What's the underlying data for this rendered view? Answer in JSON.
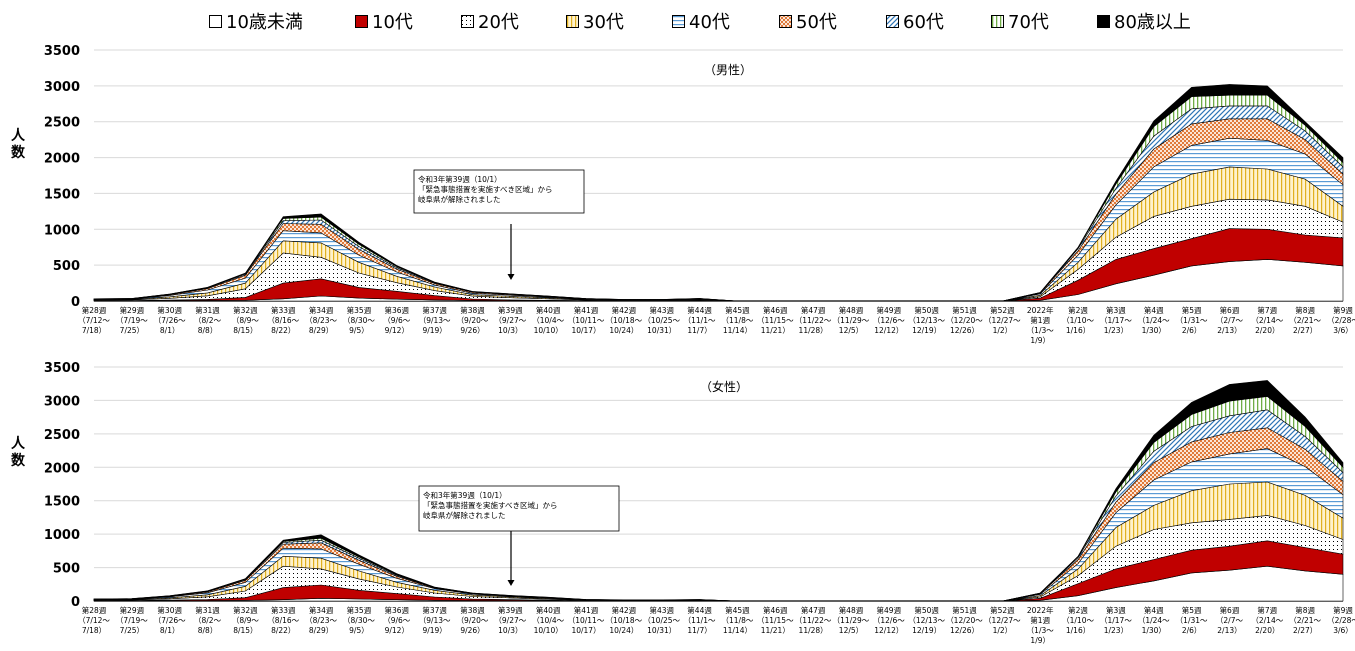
{
  "legend": [
    {
      "label": "10歳未満",
      "color": "#ffffff",
      "pattern": "none"
    },
    {
      "label": "10代",
      "color": "#c00000",
      "pattern": "solid"
    },
    {
      "label": "20代",
      "color": "#ffffff",
      "pattern": "dots"
    },
    {
      "label": "30代",
      "color": "#ffe699",
      "pattern": "vlines"
    },
    {
      "label": "40代",
      "color": "#9dc3e6",
      "pattern": "hlines"
    },
    {
      "label": "50代",
      "color": "#f4b183",
      "pattern": "checker"
    },
    {
      "label": "60代",
      "color": "#2e75b6",
      "pattern": "diag"
    },
    {
      "label": "70代",
      "color": "#a9d18e",
      "pattern": "vlines2"
    },
    {
      "label": "80歳以上",
      "color": "#000000",
      "pattern": "solid"
    }
  ],
  "ylabel": "人数",
  "categories": [
    [
      "第28週",
      "（7/12～",
      "7/18）"
    ],
    [
      "第29週",
      "（7/19～",
      "7/25）"
    ],
    [
      "第30週",
      "（7/26～",
      "8/1）"
    ],
    [
      "第31週",
      "（8/2～",
      "8/8）"
    ],
    [
      "第32週",
      "（8/9～",
      "8/15）"
    ],
    [
      "第33週",
      "（8/16～",
      "8/22）"
    ],
    [
      "第34週",
      "（8/23～",
      "8/29）"
    ],
    [
      "第35週",
      "（8/30～",
      "9/5）"
    ],
    [
      "第36週",
      "（9/6～",
      "9/12）"
    ],
    [
      "第37週",
      "（9/13～",
      "9/19）"
    ],
    [
      "第38週",
      "（9/20～",
      "9/26）"
    ],
    [
      "第39週",
      "（9/27～",
      "10/3）"
    ],
    [
      "第40週",
      "（10/4～",
      "10/10）"
    ],
    [
      "第41週",
      "（10/11～",
      "10/17）"
    ],
    [
      "第42週",
      "（10/18～",
      "10/24）"
    ],
    [
      "第43週",
      "（10/25～",
      "10/31）"
    ],
    [
      "第44週",
      "（11/1～",
      "11/7）"
    ],
    [
      "第45週",
      "（11/8～",
      "11/14）"
    ],
    [
      "第46週",
      "（11/15～",
      "11/21）"
    ],
    [
      "第47週",
      "（11/22～",
      "11/28）"
    ],
    [
      "第48週",
      "（11/29～",
      "12/5）"
    ],
    [
      "第49週",
      "（12/6～",
      "12/12）"
    ],
    [
      "第50週",
      "（12/13～",
      "12/19）"
    ],
    [
      "第51週",
      "（12/20～",
      "12/26）"
    ],
    [
      "第52週",
      "（12/27～",
      "1/2）"
    ],
    [
      "2022年",
      "第1週",
      "（1/3～",
      "1/9）"
    ],
    [
      "第2週",
      "（1/10～",
      "1/16）"
    ],
    [
      "第3週",
      "（1/17～",
      "1/23）"
    ],
    [
      "第4週",
      "（1/24～",
      "1/30）"
    ],
    [
      "第5週",
      "（1/31～",
      "2/6）"
    ],
    [
      "第6週",
      "（2/7～",
      "2/13）"
    ],
    [
      "第7週",
      "（2/14～",
      "2/20）"
    ],
    [
      "第8週",
      "（2/21～",
      "2/27）"
    ],
    [
      "第9週",
      "（2/28～",
      "3/6）"
    ]
  ],
  "annotation": [
    "令和3年第39週（10/1）",
    "「緊急事態措置を実施すべき区域」から",
    "岐阜県が解除されました"
  ],
  "chart_data": [
    {
      "type": "area",
      "title": "（男性）",
      "ylabel": "人数",
      "ylim": [
        0,
        3500
      ],
      "yticks": [
        0,
        500,
        1000,
        1500,
        2000,
        2500,
        3000,
        3500
      ],
      "grid": true,
      "series": [
        {
          "name": "10歳未満",
          "values": [
            1,
            2,
            5,
            8,
            10,
            30,
            70,
            40,
            25,
            15,
            8,
            6,
            4,
            3,
            2,
            2,
            3,
            0,
            0,
            0,
            0,
            0,
            0,
            0,
            0,
            10,
            90,
            240,
            360,
            490,
            550,
            580,
            540,
            490
          ]
        },
        {
          "name": "10代",
          "values": [
            3,
            5,
            8,
            15,
            40,
            220,
            240,
            150,
            110,
            60,
            20,
            10,
            6,
            4,
            2,
            2,
            4,
            0,
            0,
            0,
            0,
            0,
            0,
            0,
            0,
            30,
            200,
            340,
            370,
            380,
            460,
            420,
            380,
            390
          ]
        },
        {
          "name": "20代",
          "values": [
            8,
            10,
            25,
            50,
            120,
            420,
            300,
            200,
            120,
            70,
            40,
            30,
            20,
            8,
            5,
            5,
            8,
            0,
            0,
            0,
            0,
            0,
            0,
            0,
            0,
            20,
            150,
            310,
            450,
            450,
            410,
            410,
            400,
            220
          ]
        },
        {
          "name": "30代",
          "values": [
            6,
            6,
            20,
            40,
            80,
            170,
            200,
            150,
            90,
            50,
            20,
            20,
            15,
            6,
            4,
            4,
            6,
            0,
            0,
            0,
            0,
            0,
            0,
            0,
            0,
            20,
            100,
            250,
            340,
            450,
            450,
            430,
            380,
            220
          ]
        },
        {
          "name": "40代",
          "values": [
            6,
            6,
            20,
            40,
            70,
            140,
            140,
            100,
            60,
            30,
            20,
            15,
            10,
            6,
            4,
            4,
            6,
            0,
            0,
            0,
            0,
            0,
            0,
            0,
            0,
            20,
            100,
            200,
            350,
            400,
            400,
            400,
            350,
            300
          ]
        },
        {
          "name": "50代",
          "values": [
            3,
            3,
            10,
            20,
            40,
            100,
            120,
            80,
            40,
            20,
            15,
            10,
            8,
            4,
            3,
            3,
            5,
            0,
            0,
            0,
            0,
            0,
            0,
            0,
            0,
            10,
            60,
            150,
            250,
            300,
            270,
            300,
            200,
            150
          ]
        },
        {
          "name": "60代",
          "values": [
            2,
            2,
            5,
            10,
            15,
            40,
            60,
            40,
            20,
            10,
            5,
            5,
            3,
            2,
            1,
            1,
            2,
            0,
            0,
            0,
            0,
            0,
            0,
            0,
            0,
            5,
            30,
            80,
            180,
            210,
            180,
            180,
            120,
            100
          ]
        },
        {
          "name": "70代",
          "values": [
            1,
            1,
            3,
            5,
            10,
            30,
            40,
            30,
            15,
            5,
            3,
            3,
            2,
            1,
            1,
            1,
            1,
            0,
            0,
            0,
            0,
            0,
            0,
            0,
            0,
            3,
            15,
            60,
            130,
            170,
            150,
            150,
            80,
            60
          ]
        },
        {
          "name": "80歳以上",
          "values": [
            1,
            1,
            2,
            3,
            5,
            25,
            45,
            30,
            15,
            5,
            3,
            2,
            2,
            1,
            1,
            1,
            1,
            0,
            0,
            0,
            0,
            0,
            0,
            0,
            0,
            2,
            5,
            40,
            80,
            130,
            150,
            130,
            50,
            70
          ]
        }
      ]
    },
    {
      "type": "area",
      "title": "（女性）",
      "ylabel": "人数",
      "ylim": [
        0,
        3500
      ],
      "yticks": [
        0,
        500,
        1000,
        1500,
        2000,
        2500,
        3000,
        3500
      ],
      "grid": true,
      "series": [
        {
          "name": "10歳未満",
          "values": [
            1,
            2,
            5,
            8,
            10,
            20,
            40,
            30,
            20,
            10,
            8,
            6,
            4,
            2,
            2,
            2,
            2,
            0,
            0,
            0,
            0,
            0,
            0,
            0,
            0,
            10,
            80,
            200,
            300,
            420,
            460,
            520,
            450,
            400
          ]
        },
        {
          "name": "10代",
          "values": [
            3,
            5,
            8,
            15,
            40,
            180,
            200,
            130,
            90,
            50,
            20,
            15,
            8,
            3,
            2,
            2,
            2,
            0,
            0,
            0,
            0,
            0,
            0,
            0,
            0,
            30,
            180,
            280,
            320,
            340,
            360,
            380,
            350,
            300
          ]
        },
        {
          "name": "20代",
          "values": [
            8,
            10,
            20,
            40,
            100,
            320,
            240,
            170,
            100,
            60,
            40,
            25,
            15,
            6,
            4,
            4,
            5,
            0,
            0,
            0,
            0,
            0,
            0,
            0,
            0,
            20,
            120,
            340,
            450,
            410,
            400,
            380,
            330,
            220
          ]
        },
        {
          "name": "30代",
          "values": [
            6,
            6,
            15,
            30,
            70,
            150,
            160,
            120,
            70,
            40,
            20,
            15,
            10,
            4,
            3,
            3,
            4,
            0,
            0,
            0,
            0,
            0,
            0,
            0,
            0,
            20,
            100,
            280,
            360,
            480,
            530,
            500,
            450,
            320
          ]
        },
        {
          "name": "40代",
          "values": [
            6,
            6,
            15,
            30,
            60,
            120,
            140,
            100,
            60,
            25,
            15,
            10,
            8,
            4,
            3,
            3,
            4,
            0,
            0,
            0,
            0,
            0,
            0,
            0,
            0,
            20,
            80,
            220,
            380,
            430,
            450,
            500,
            430,
            350
          ]
        },
        {
          "name": "50代",
          "values": [
            3,
            3,
            8,
            15,
            30,
            60,
            90,
            60,
            30,
            10,
            8,
            6,
            5,
            2,
            1,
            1,
            2,
            0,
            0,
            0,
            0,
            0,
            0,
            0,
            0,
            10,
            60,
            160,
            260,
            300,
            320,
            310,
            260,
            200
          ]
        },
        {
          "name": "60代",
          "values": [
            2,
            2,
            5,
            8,
            12,
            25,
            40,
            30,
            15,
            5,
            4,
            3,
            3,
            1,
            1,
            1,
            1,
            0,
            0,
            0,
            0,
            0,
            0,
            0,
            0,
            5,
            30,
            90,
            170,
            230,
            250,
            270,
            190,
            130
          ]
        },
        {
          "name": "70代",
          "values": [
            1,
            1,
            2,
            4,
            8,
            15,
            30,
            20,
            10,
            5,
            3,
            2,
            2,
            1,
            1,
            1,
            1,
            0,
            0,
            0,
            0,
            0,
            0,
            0,
            0,
            3,
            15,
            60,
            130,
            180,
            220,
            200,
            150,
            80
          ]
        },
        {
          "name": "80歳以上",
          "values": [
            1,
            1,
            2,
            3,
            5,
            20,
            50,
            30,
            15,
            5,
            2,
            2,
            2,
            1,
            1,
            1,
            1,
            0,
            0,
            0,
            0,
            0,
            0,
            0,
            0,
            2,
            5,
            50,
            110,
            180,
            250,
            240,
            140,
            70
          ]
        }
      ]
    }
  ]
}
